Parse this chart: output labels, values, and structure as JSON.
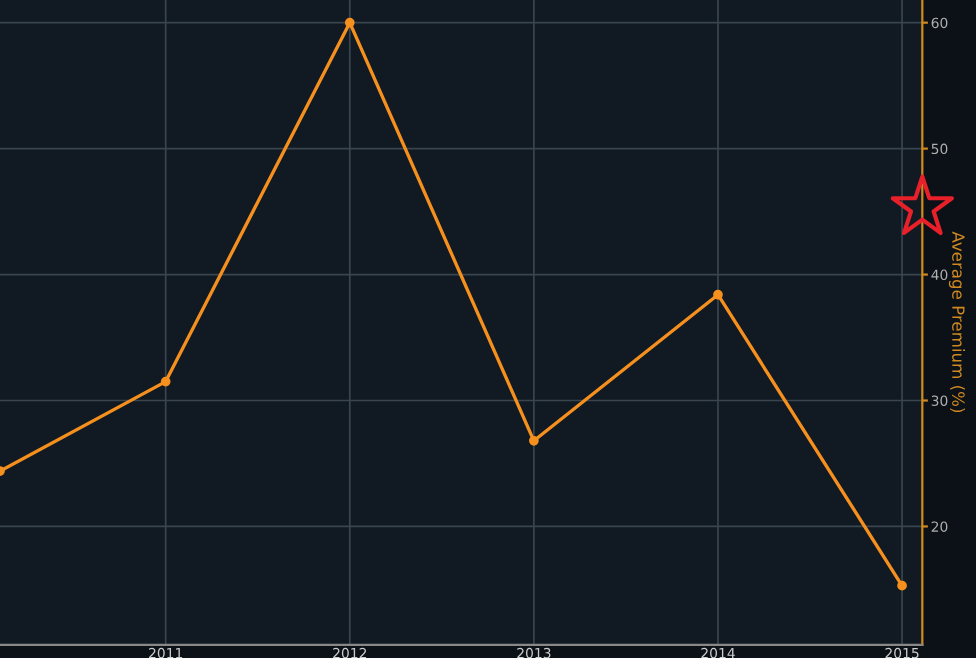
{
  "chart_data": {
    "type": "line",
    "ylabel": "Average Premium (%)",
    "x": [
      2010.1,
      2011,
      2012,
      2013,
      2014,
      2015
    ],
    "series": [
      {
        "color": "#f5901e",
        "marker": "circle",
        "values": [
          24.4,
          31.5,
          60,
          26.8,
          38.4,
          15.3
        ]
      },
      {
        "type": "scatter",
        "color": "#e8202a",
        "marker": "star",
        "x": [
          2015.11
        ],
        "values": [
          45.3
        ]
      }
    ],
    "xlim": [
      2010.1,
      2015.11
    ],
    "ylim": [
      10.6,
      61.8
    ],
    "xticks": [
      2011,
      2012,
      2013,
      2014,
      2015
    ],
    "yticks": [
      20,
      30,
      40,
      50,
      60
    ],
    "grid": true,
    "legend": false
  }
}
